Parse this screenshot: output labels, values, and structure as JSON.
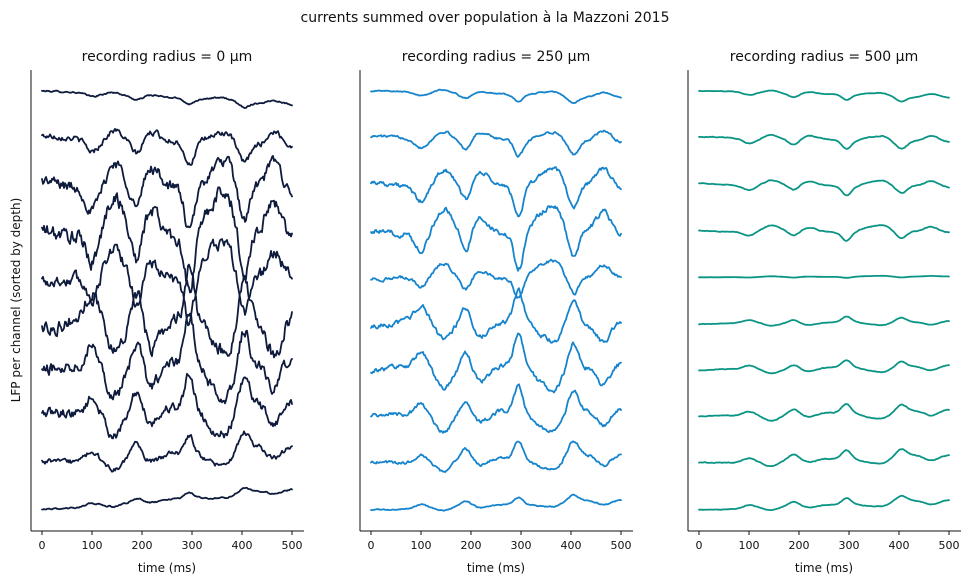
{
  "chart_data": {
    "type": "line",
    "suptitle": "currents summed over population à la Mazzoni 2015",
    "ylabel": "LFP per channel (sorted by depth)",
    "xlabel": "time (ms)",
    "xlim": [
      0,
      500
    ],
    "xticks": [
      "0",
      "100",
      "200",
      "300",
      "400",
      "500"
    ],
    "spines": "left and bottom only",
    "y_ticks_shown": false,
    "channels": 10,
    "panels": [
      {
        "title": "recording radius = 0 µm",
        "color": "#0f1b3d",
        "noise": 0.35,
        "amplitudes": [
          0.15,
          0.6,
          1.2,
          1.6,
          1.3,
          1.5,
          1.3,
          1.0,
          0.55,
          0.15
        ]
      },
      {
        "title": "recording radius = 250 µm",
        "color": "#1684cc",
        "noise": 0.2,
        "amplitudes": [
          0.2,
          0.45,
          0.8,
          1.0,
          0.6,
          0.85,
          0.9,
          0.75,
          0.5,
          0.2
        ]
      },
      {
        "title": "recording radius = 500 µm",
        "color": "#0a9485",
        "noise": 0.1,
        "amplitudes": [
          0.15,
          0.25,
          0.25,
          0.25,
          0.03,
          0.15,
          0.2,
          0.25,
          0.25,
          0.18
        ]
      }
    ],
    "source_peaks_ms": [
      100,
      145,
      190,
      220,
      295,
      345,
      370,
      405,
      465
    ]
  }
}
